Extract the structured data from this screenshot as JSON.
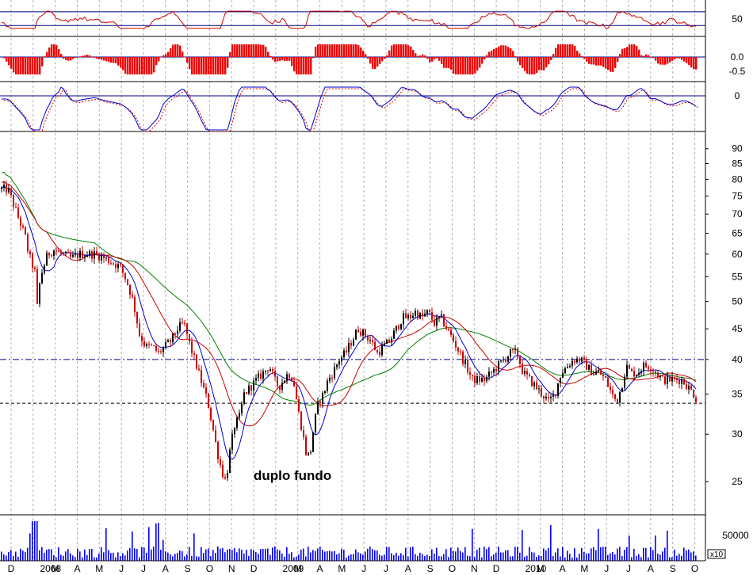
{
  "chart_data": {
    "type": "candlestick",
    "title": "",
    "scale": "log",
    "price_ylim": [
      22,
      95
    ],
    "price_ticks": [
      90,
      85,
      80,
      75,
      70,
      65,
      60,
      55,
      50,
      45,
      40,
      35,
      30,
      25
    ],
    "x_months": [
      "D",
      "2008",
      "M",
      "A",
      "M",
      "J",
      "J",
      "A",
      "S",
      "O",
      "N",
      "D",
      "2009",
      "M",
      "A",
      "M",
      "J",
      "J",
      "A",
      "S",
      "O",
      "N",
      "D",
      "2010",
      "M",
      "A",
      "M",
      "J",
      "J",
      "A",
      "S",
      "O"
    ],
    "price_path": [
      [
        0,
        77
      ],
      [
        10,
        77
      ],
      [
        18,
        72
      ],
      [
        25,
        68
      ],
      [
        32,
        64
      ],
      [
        36,
        60
      ],
      [
        40,
        58
      ],
      [
        44,
        56
      ],
      [
        47,
        49
      ],
      [
        51,
        55
      ],
      [
        55,
        57
      ],
      [
        60,
        60
      ],
      [
        68,
        61
      ],
      [
        78,
        60
      ],
      [
        90,
        59
      ],
      [
        100,
        60
      ],
      [
        110,
        60
      ],
      [
        120,
        60
      ],
      [
        132,
        59
      ],
      [
        143,
        58
      ],
      [
        152,
        57
      ],
      [
        160,
        54
      ],
      [
        168,
        50
      ],
      [
        176,
        44
      ],
      [
        184,
        42
      ],
      [
        192,
        42
      ],
      [
        200,
        41
      ],
      [
        208,
        42
      ],
      [
        216,
        43
      ],
      [
        224,
        45
      ],
      [
        232,
        46
      ],
      [
        240,
        42
      ],
      [
        248,
        39
      ],
      [
        256,
        36
      ],
      [
        262,
        34
      ],
      [
        268,
        31
      ],
      [
        274,
        28
      ],
      [
        280,
        26
      ],
      [
        285,
        25
      ],
      [
        290,
        28
      ],
      [
        296,
        31
      ],
      [
        302,
        32
      ],
      [
        308,
        35
      ],
      [
        316,
        36
      ],
      [
        324,
        37
      ],
      [
        332,
        38
      ],
      [
        340,
        39
      ],
      [
        346,
        37
      ],
      [
        352,
        36
      ],
      [
        358,
        37
      ],
      [
        364,
        38
      ],
      [
        370,
        37
      ],
      [
        376,
        33
      ],
      [
        382,
        30
      ],
      [
        386,
        28
      ],
      [
        391,
        27.5
      ],
      [
        396,
        31
      ],
      [
        402,
        34
      ],
      [
        408,
        35
      ],
      [
        414,
        37
      ],
      [
        420,
        38
      ],
      [
        428,
        40
      ],
      [
        436,
        41
      ],
      [
        444,
        43
      ],
      [
        452,
        45
      ],
      [
        460,
        44
      ],
      [
        468,
        43
      ],
      [
        476,
        41
      ],
      [
        484,
        42
      ],
      [
        492,
        43
      ],
      [
        500,
        45
      ],
      [
        508,
        47
      ],
      [
        516,
        47
      ],
      [
        524,
        48
      ],
      [
        532,
        47
      ],
      [
        540,
        48
      ],
      [
        548,
        46
      ],
      [
        556,
        47
      ],
      [
        564,
        45
      ],
      [
        572,
        43
      ],
      [
        580,
        41
      ],
      [
        588,
        39
      ],
      [
        596,
        37
      ],
      [
        604,
        37
      ],
      [
        612,
        37
      ],
      [
        620,
        38
      ],
      [
        628,
        39
      ],
      [
        636,
        40
      ],
      [
        644,
        41
      ],
      [
        652,
        41
      ],
      [
        660,
        38
      ],
      [
        668,
        37
      ],
      [
        676,
        36
      ],
      [
        684,
        35
      ],
      [
        692,
        34
      ],
      [
        700,
        35
      ],
      [
        708,
        38
      ],
      [
        716,
        39
      ],
      [
        724,
        40
      ],
      [
        732,
        40
      ],
      [
        740,
        39
      ],
      [
        748,
        38
      ],
      [
        756,
        38
      ],
      [
        764,
        37
      ],
      [
        772,
        35
      ],
      [
        778,
        34
      ],
      [
        784,
        36
      ],
      [
        790,
        39
      ],
      [
        796,
        38
      ],
      [
        804,
        38
      ],
      [
        812,
        39
      ],
      [
        820,
        39
      ],
      [
        828,
        38
      ],
      [
        836,
        37
      ],
      [
        844,
        37
      ],
      [
        852,
        37
      ],
      [
        860,
        37
      ],
      [
        868,
        36
      ],
      [
        875,
        35
      ],
      [
        880,
        34
      ]
    ],
    "support_line": 33.8,
    "resistance_line": 40,
    "ma_colors": {
      "fast": "#0000cc",
      "mid": "#cc0000",
      "slow": "#008000"
    },
    "annotation": "duplo fundo",
    "rsi": {
      "ticks": [
        "50"
      ],
      "upper_level": 70,
      "lower_level": 30
    },
    "macd_hist": {
      "ticks": [
        "0.0",
        "-0.5"
      ]
    },
    "osc": {
      "ticks": [
        "0"
      ]
    },
    "volume": {
      "tick": "50000",
      "multiplier": "x10"
    },
    "colors": {
      "candle": "#cc0000",
      "candle_dark": "#000000",
      "volume": "#0000ff",
      "grid": "#b0b0b0",
      "frame": "#000080"
    }
  }
}
